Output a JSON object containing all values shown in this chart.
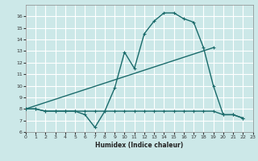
{
  "xlabel": "Humidex (Indice chaleur)",
  "bg_color": "#cce8e8",
  "grid_color": "#ffffff",
  "line_color": "#1a6b6b",
  "xlim": [
    0,
    23
  ],
  "ylim": [
    6,
    17
  ],
  "xticks": [
    0,
    1,
    2,
    3,
    4,
    5,
    6,
    7,
    8,
    9,
    10,
    11,
    12,
    13,
    14,
    15,
    16,
    17,
    18,
    19,
    20,
    21,
    22,
    23
  ],
  "yticks": [
    6,
    7,
    8,
    9,
    10,
    11,
    12,
    13,
    14,
    15,
    16
  ],
  "line1_x": [
    0,
    1,
    2,
    3,
    4,
    5,
    6,
    7,
    8,
    9,
    10,
    11,
    12,
    13,
    14,
    15,
    16,
    17,
    18,
    19,
    20,
    21,
    22
  ],
  "line1_y": [
    8.0,
    8.0,
    7.8,
    7.8,
    7.8,
    7.8,
    7.5,
    6.4,
    7.8,
    9.8,
    12.9,
    11.5,
    14.5,
    15.6,
    16.3,
    16.3,
    15.8,
    15.5,
    13.3,
    10.0,
    7.5,
    7.5,
    7.2
  ],
  "line2_x": [
    0,
    19
  ],
  "line2_y": [
    8.0,
    13.3
  ],
  "line3_x": [
    0,
    1,
    2,
    3,
    4,
    5,
    6,
    7,
    8,
    9,
    10,
    11,
    12,
    13,
    14,
    15,
    16,
    17,
    18,
    19,
    20,
    21,
    22
  ],
  "line3_y": [
    8.0,
    8.0,
    7.8,
    7.8,
    7.8,
    7.8,
    7.8,
    7.8,
    7.8,
    7.8,
    7.8,
    7.8,
    7.8,
    7.8,
    7.8,
    7.8,
    7.8,
    7.8,
    7.8,
    7.8,
    7.5,
    7.5,
    7.2
  ]
}
